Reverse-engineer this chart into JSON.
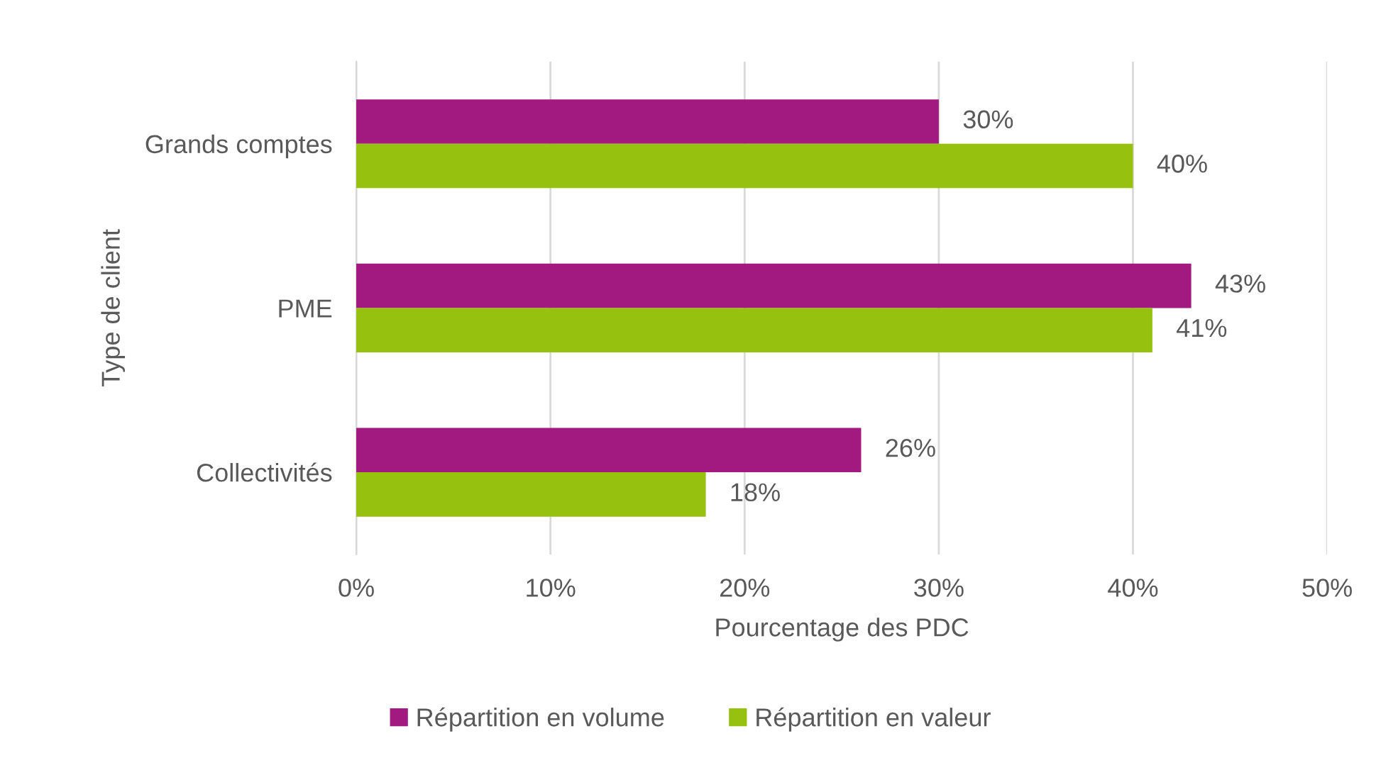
{
  "chart_data": {
    "type": "bar",
    "orientation": "horizontal",
    "xlabel": "Pourcentage des PDC",
    "ylabel": "Type de client",
    "categories": [
      "Grands comptes",
      "PME",
      "Collectivités"
    ],
    "series": [
      {
        "name": "Répartition en volume",
        "color": "#a2197f",
        "values": [
          30,
          43,
          26
        ],
        "value_labels": [
          "30%",
          "43%",
          "26%"
        ]
      },
      {
        "name": "Répartition en valeur",
        "color": "#97c10f",
        "values": [
          40,
          41,
          18
        ],
        "value_labels": [
          "40%",
          "41%",
          "18%"
        ]
      }
    ],
    "xlim": [
      0,
      50
    ],
    "xticks": [
      {
        "value": 0,
        "label": "0%"
      },
      {
        "value": 10,
        "label": "10%"
      },
      {
        "value": 20,
        "label": "20%"
      },
      {
        "value": 30,
        "label": "30%"
      },
      {
        "value": 40,
        "label": "40%"
      },
      {
        "value": 50,
        "label": "50%"
      }
    ],
    "grid": "x",
    "legend": "bottom"
  }
}
